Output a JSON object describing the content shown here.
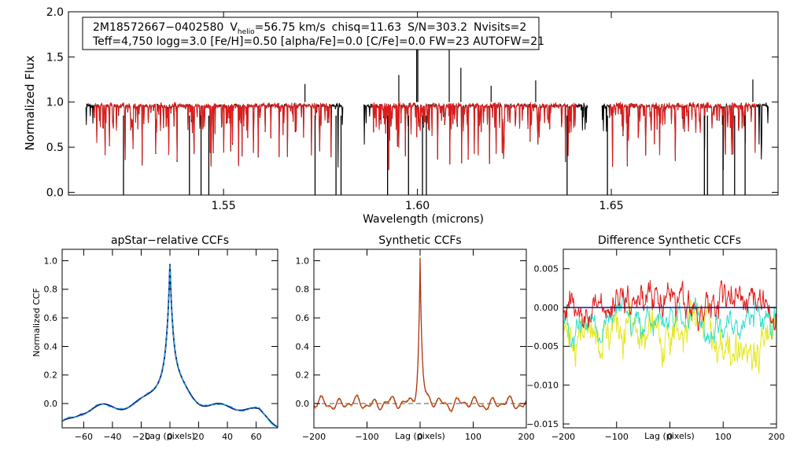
{
  "chart_data": [
    {
      "id": "spectrum",
      "type": "line",
      "title": "",
      "xlabel": "Wavelength (microns)",
      "ylabel": "Normalized Flux",
      "xlim": [
        1.51,
        1.693
      ],
      "ylim": [
        -0.03,
        2.0
      ],
      "xticks": [
        1.55,
        1.6,
        1.65
      ],
      "xtick_labels": [
        "1.55",
        "1.60",
        "1.65"
      ],
      "yticks": [
        0.0,
        0.5,
        1.0,
        1.5,
        2.0
      ],
      "ytick_labels": [
        "0.0",
        "0.5",
        "1.0",
        "1.5",
        "2.0"
      ],
      "chips": [
        [
          1.5145,
          1.5808
        ],
        [
          1.5862,
          1.644
        ],
        [
          1.6475,
          1.6905
        ]
      ],
      "deep_lines": [
        1.5242,
        1.5412,
        1.5442,
        1.5462,
        1.5736,
        1.579,
        1.5803,
        1.5923,
        1.5977,
        1.6013,
        1.6023,
        1.6386,
        1.649,
        1.674,
        1.6748,
        1.6788,
        1.6818,
        1.6845
      ],
      "spikes": [
        [
          1.5998,
          1.64
        ],
        [
          1.6001,
          1.58
        ],
        [
          1.6082,
          1.59
        ],
        [
          1.6112,
          1.38
        ],
        [
          1.5952,
          1.3
        ],
        [
          1.6305,
          1.24
        ],
        [
          1.6865,
          1.25
        ],
        [
          1.571,
          1.2
        ],
        [
          1.619,
          1.18
        ]
      ],
      "series": [
        {
          "name": "observed",
          "color": "#000000"
        },
        {
          "name": "model",
          "color": "#e11b1b"
        }
      ],
      "legend_box": {
        "line1": {
          "star": "2M18572667−0402580",
          "vprefix": "V",
          "vsub": "helio",
          "vvalue": "=56.75 km/s",
          "chisq": "chisq=11.63",
          "snr": "S/N=303.2",
          "nvisits": "Nvisits=2"
        },
        "line2": "Teff=4,750 logg=3.0 [Fe/H]=0.50 [alpha/Fe]=0.0 [C/Fe]=0.0 FW=23 AUTOFW=21"
      }
    },
    {
      "id": "apstar_ccf",
      "type": "line",
      "title": "apStar−relative CCFs",
      "xlabel": "Lag (pixels)",
      "ylabel": "Normalized CCF",
      "xlim": [
        -75,
        75
      ],
      "ylim": [
        -0.17,
        1.08
      ],
      "xticks": [
        -60,
        -40,
        -20,
        0,
        20,
        40,
        60
      ],
      "xtick_labels": [
        "−60",
        "−40",
        "−20",
        "0",
        "20",
        "40",
        "60"
      ],
      "yticks": [
        0.0,
        0.2,
        0.4,
        0.6,
        0.8,
        1.0
      ],
      "ytick_labels": [
        "0.0",
        "0.2",
        "0.4",
        "0.6",
        "0.8",
        "1.0"
      ],
      "peak": {
        "x": 0,
        "y": 1.0
      },
      "series": [
        {
          "name": "ccf",
          "color": "#0a1f8f"
        },
        {
          "name": "ccf_overlay",
          "color": "#22b5c0",
          "style": "dashed"
        }
      ]
    },
    {
      "id": "synthetic_ccf",
      "type": "line",
      "title": "Synthetic CCFs",
      "xlabel": "Lag (pixels)",
      "ylabel": "",
      "xlim": [
        -200,
        200
      ],
      "ylim": [
        -0.17,
        1.08
      ],
      "xticks": [
        -200,
        -100,
        0,
        100,
        200
      ],
      "xtick_labels": [
        "−200",
        "−100",
        "0",
        "100",
        "200"
      ],
      "yticks": [
        0.0,
        0.2,
        0.4,
        0.6,
        0.8,
        1.0
      ],
      "ytick_labels": [
        "0.0",
        "0.2",
        "0.4",
        "0.6",
        "0.8",
        "1.0"
      ],
      "peak": {
        "x": 0,
        "y": 1.0
      },
      "baseline": 0.0,
      "series": [
        {
          "name": "synthetic",
          "color": "#b03418"
        },
        {
          "name": "synthetic_alt",
          "color": "#c9a21e",
          "style": "dashed"
        }
      ]
    },
    {
      "id": "diff_ccf",
      "type": "line",
      "title": "Difference Synthetic CCFs",
      "xlabel": "Lag (pixels)",
      "ylabel": "",
      "xlim": [
        -200,
        200
      ],
      "ylim": [
        -0.0155,
        0.0075
      ],
      "xticks": [
        -200,
        -100,
        0,
        100,
        200
      ],
      "xtick_labels": [
        "−200",
        "−100",
        "0",
        "100",
        "200"
      ],
      "yticks": [
        0.005,
        0.0,
        -0.005,
        -0.01,
        -0.015
      ],
      "ytick_labels": [
        "0.005",
        "0.000",
        "−0.005",
        "−0.010",
        "−0.015"
      ],
      "zero_line": 0.0,
      "series": [
        {
          "name": "diff_red",
          "color": "#e11b1b"
        },
        {
          "name": "diff_yellow",
          "color": "#e4e81a"
        },
        {
          "name": "diff_cyan",
          "color": "#35dfc8"
        },
        {
          "name": "diff_navy",
          "color": "#0a1f8f"
        }
      ]
    }
  ]
}
